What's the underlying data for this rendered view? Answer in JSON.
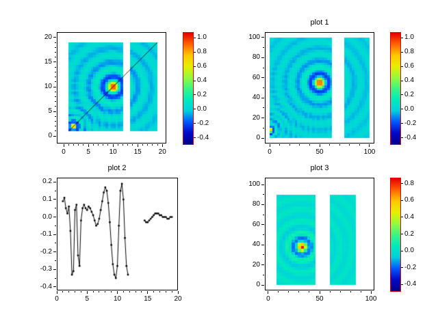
{
  "figure": {
    "background": "#ffffff",
    "frame_color": "#000000",
    "colorbar_border_color": "#e00000"
  },
  "colormap_stops": [
    {
      "t": 0.0,
      "rgb": [
        0,
        0,
        140
      ]
    },
    {
      "t": 0.1,
      "rgb": [
        0,
        10,
        200
      ]
    },
    {
      "t": 0.2,
      "rgb": [
        0,
        90,
        255
      ]
    },
    {
      "t": 0.3,
      "rgb": [
        0,
        210,
        220
      ]
    },
    {
      "t": 0.4,
      "rgb": [
        0,
        235,
        190
      ]
    },
    {
      "t": 0.5,
      "rgb": [
        60,
        245,
        130
      ]
    },
    {
      "t": 0.6,
      "rgb": [
        150,
        250,
        60
      ]
    },
    {
      "t": 0.7,
      "rgb": [
        230,
        240,
        0
      ]
    },
    {
      "t": 0.8,
      "rgb": [
        255,
        200,
        0
      ]
    },
    {
      "t": 0.9,
      "rgb": [
        255,
        100,
        0
      ]
    },
    {
      "t": 1.0,
      "rgb": [
        230,
        0,
        0
      ]
    }
  ],
  "chart_data": [
    {
      "id": "main-heatmap",
      "type": "heatmap",
      "title": "",
      "xlim": [
        -1.4,
        20.8
      ],
      "ylim": [
        -1.5,
        21.1
      ],
      "xtick_values": [
        0,
        5,
        10,
        15,
        20
      ],
      "xtick_labels": [
        "0",
        "5",
        "10",
        "15",
        "20"
      ],
      "ytick_values": [
        0,
        5,
        10,
        15,
        20
      ],
      "ytick_labels": [
        "0",
        "5",
        "10",
        "15",
        "20"
      ],
      "patches": [
        {
          "x0": 1,
          "x1": 12,
          "y0": 1,
          "y1": 19
        },
        {
          "x0": 13.5,
          "x1": 19,
          "y0": 1,
          "y1": 19
        }
      ],
      "sources": [
        {
          "cx": 10,
          "cy": 10,
          "k": 2.2,
          "amp": 1.0
        },
        {
          "cx": 2,
          "cy": 2,
          "k": 4.5,
          "amp": 1.0
        }
      ],
      "grid_step": 0.5,
      "vmin": -0.48,
      "vmax": 1.08,
      "overlay_line": {
        "x": [
          1,
          19
        ],
        "y": [
          1,
          19
        ],
        "color": "#000000"
      },
      "colorbar_ticks": {
        "values": [
          1.0,
          0.8,
          0.6,
          0.4,
          0.2,
          0.0,
          -0.2,
          -0.4
        ],
        "labels": [
          "1.0",
          "0.8",
          "0.6",
          "0.4",
          "0.2",
          "0.0",
          "-0.2",
          "-0.4"
        ]
      }
    },
    {
      "id": "plot1-heatmap",
      "type": "heatmap",
      "title": "plot 1",
      "xlim": [
        -4.8,
        104.8
      ],
      "ylim": [
        -5.4,
        105.4
      ],
      "xtick_values": [
        0,
        50,
        100
      ],
      "xtick_labels": [
        "0",
        "50",
        "100"
      ],
      "ytick_values": [
        0,
        20,
        40,
        60,
        80,
        100
      ],
      "ytick_labels": [
        "0",
        "20",
        "40",
        "60",
        "80",
        "100"
      ],
      "patches": [
        {
          "x0": 0,
          "x1": 62,
          "y0": 0,
          "y1": 100
        },
        {
          "x0": 75,
          "x1": 100,
          "y0": 0,
          "y1": 100
        }
      ],
      "sources": [
        {
          "cx": 50,
          "cy": 55,
          "k": 0.5,
          "amp": 1.0
        },
        {
          "cx": 0,
          "cy": 8,
          "k": 1.1,
          "amp": 1.0
        }
      ],
      "grid_step": 2.5,
      "vmin": -0.48,
      "vmax": 1.08,
      "colorbar_ticks": {
        "values": [
          1.0,
          0.8,
          0.6,
          0.4,
          0.2,
          0.0,
          -0.2,
          -0.4
        ],
        "labels": [
          "1.0",
          "0.8",
          "0.6",
          "0.4",
          "0.2",
          "0.0",
          "-0.2",
          "-0.4"
        ]
      }
    },
    {
      "id": "plot2-line",
      "type": "line",
      "title": "plot 2",
      "marker": "dot",
      "line_color": "#000000",
      "xlim": [
        0,
        20
      ],
      "ylim": [
        -0.42,
        0.225
      ],
      "xtick_values": [
        0,
        5,
        10,
        15,
        20
      ],
      "xtick_labels": [
        "0",
        "5",
        "10",
        "15",
        "20"
      ],
      "ytick_values": [
        0.2,
        0.1,
        0.0,
        -0.1,
        -0.2,
        -0.3,
        -0.4
      ],
      "ytick_labels": [
        "0.2",
        "0.1",
        "0.0",
        "-0.1",
        "-0.2",
        "-0.3",
        "-0.4"
      ],
      "segments": [
        {
          "x": [
            1,
            1.25,
            1.5,
            1.75,
            2,
            2.25,
            2.5,
            2.75,
            3,
            3.25,
            3.5,
            3.75,
            4,
            4.25,
            4.5,
            4.75,
            5,
            5.25,
            5.5,
            5.75,
            6,
            6.25,
            6.5,
            6.75,
            7,
            7.25,
            7.5,
            7.75,
            8,
            8.25,
            8.5,
            8.75,
            9,
            9.25,
            9.5,
            9.75,
            10,
            10.25,
            10.5,
            10.75,
            11,
            11.25,
            11.5,
            11.75
          ],
          "y": [
            0.09,
            0.11,
            0.05,
            0.02,
            0.06,
            -0.08,
            -0.33,
            -0.31,
            0.04,
            0.07,
            -0.22,
            -0.28,
            -0.02,
            0.05,
            0.07,
            0.05,
            0.04,
            0.06,
            0.05,
            0.03,
            0.01,
            -0.02,
            -0.05,
            -0.04,
            -0.01,
            0.04,
            0.09,
            0.14,
            0.17,
            0.15,
            0.08,
            -0.03,
            -0.16,
            -0.27,
            -0.33,
            -0.35,
            -0.28,
            -0.05,
            0.15,
            0.19,
            0.1,
            -0.12,
            -0.28,
            -0.33
          ]
        },
        {
          "x": [
            14.5,
            14.75,
            15,
            15.25,
            15.5,
            15.75,
            16,
            16.25,
            16.5,
            16.75,
            17,
            17.25,
            17.5,
            17.75,
            18,
            18.25,
            18.5,
            18.75,
            19
          ],
          "y": [
            -0.02,
            -0.03,
            -0.03,
            -0.02,
            -0.01,
            0,
            0.01,
            0.02,
            0.02,
            0.02,
            0.01,
            0.01,
            0,
            0,
            0,
            -0.01,
            -0.01,
            0,
            0
          ]
        }
      ]
    },
    {
      "id": "plot3-heatmap",
      "type": "heatmap",
      "title": "plot 3",
      "xlim": [
        -3.3,
        103.3
      ],
      "ylim": [
        -5.4,
        106.8
      ],
      "xtick_values": [
        0,
        50,
        100
      ],
      "xtick_labels": [
        "0",
        "50",
        "100"
      ],
      "ytick_values": [
        0,
        20,
        40,
        60,
        80,
        100
      ],
      "ytick_labels": [
        "0",
        "20",
        "40",
        "60",
        "80",
        "100"
      ],
      "patches": [
        {
          "x0": 8,
          "x1": 46,
          "y0": 0,
          "y1": 90
        },
        {
          "x0": 60,
          "x1": 85,
          "y0": 0,
          "y1": 90
        }
      ],
      "sources": [
        {
          "cx": 33,
          "cy": 38,
          "k": 0.55,
          "amp": 0.85
        }
      ],
      "grid_step": 3,
      "vmin": -0.47,
      "vmax": 0.87,
      "colorbar_ticks": {
        "values": [
          0.8,
          0.6,
          0.4,
          0.2,
          0.0,
          -0.2,
          -0.4
        ],
        "labels": [
          "0.8",
          "0.6",
          "0.4",
          "0.2",
          "0.0",
          "-0.2",
          "-0.4"
        ]
      }
    }
  ]
}
